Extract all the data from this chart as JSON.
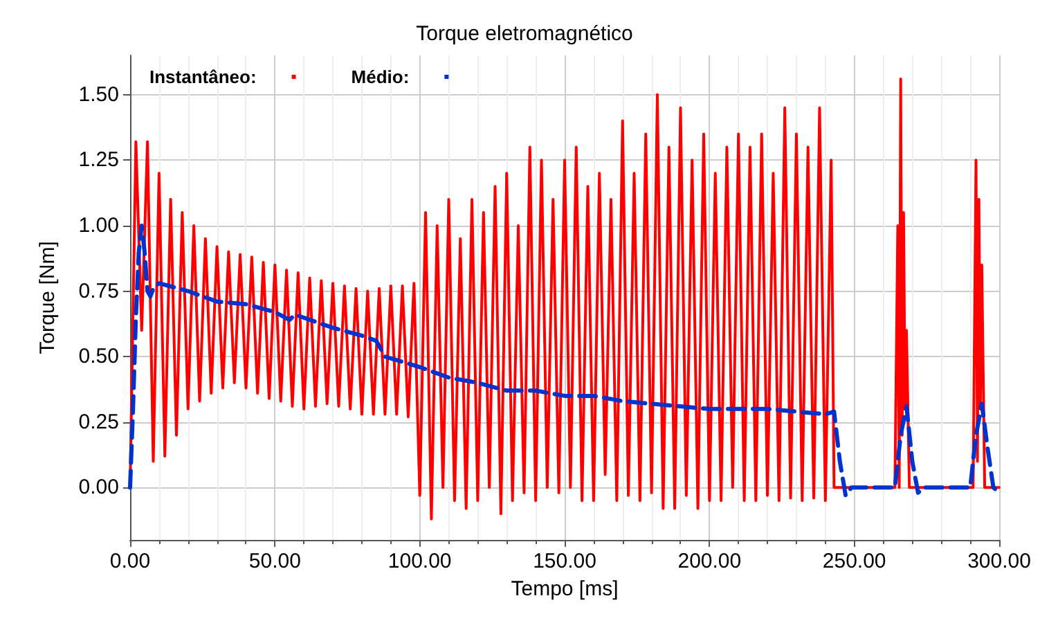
{
  "chart_data": {
    "type": "line",
    "title": "Torque eletromagnético",
    "xlabel": "Tempo [ms]",
    "ylabel": "Torque [Nm]",
    "xlim": [
      0,
      300
    ],
    "xticks": [
      {
        "value": 0,
        "label": "0.00"
      },
      {
        "value": 50,
        "label": "50.00"
      },
      {
        "value": 100,
        "label": "100.00"
      },
      {
        "value": 150,
        "label": "150.00"
      },
      {
        "value": 200,
        "label": "200.00"
      },
      {
        "value": 250,
        "label": "250.00"
      },
      {
        "value": 300,
        "label": "300.00"
      }
    ],
    "ylim": [
      -0.2,
      1.65
    ],
    "yticks": [
      {
        "value": 0,
        "label": "0.00"
      },
      {
        "value": 0.25,
        "label": "0.25"
      },
      {
        "value": 0.5,
        "label": "0.50"
      },
      {
        "value": 0.75,
        "label": "0.75"
      },
      {
        "value": 1,
        "label": "1.00"
      },
      {
        "value": 1.25,
        "label": "1.25"
      },
      {
        "value": 1.5,
        "label": "1.50"
      }
    ],
    "grid": true,
    "legend": "top left",
    "marker": "none",
    "series": [
      {
        "name": "Instantâneo:",
        "color": "#ff0000",
        "line_style": "solid",
        "x": [
          0,
          2,
          4,
          6,
          8,
          10,
          12,
          14,
          16,
          18,
          20,
          22,
          24,
          26,
          28,
          30,
          32,
          34,
          36,
          38,
          40,
          42,
          44,
          46,
          48,
          50,
          52,
          54,
          56,
          58,
          60,
          62,
          64,
          66,
          68,
          70,
          72,
          74,
          76,
          78,
          80,
          82,
          84,
          86,
          88,
          90,
          92,
          94,
          96,
          98,
          100,
          102,
          104,
          106,
          108,
          110,
          112,
          114,
          116,
          118,
          120,
          122,
          124,
          126,
          128,
          130,
          132,
          134,
          136,
          138,
          140,
          142,
          144,
          146,
          148,
          150,
          152,
          154,
          156,
          158,
          160,
          162,
          164,
          166,
          168,
          170,
          172,
          174,
          176,
          178,
          180,
          182,
          184,
          186,
          188,
          190,
          192,
          194,
          196,
          198,
          200,
          202,
          204,
          206,
          208,
          210,
          212,
          214,
          216,
          218,
          220,
          222,
          224,
          226,
          228,
          230,
          232,
          234,
          236,
          238,
          240,
          242,
          243,
          264,
          265,
          265.5,
          266,
          266.5,
          267,
          267.5,
          268,
          269,
          291,
          292,
          292.5,
          293,
          293.5,
          294,
          295,
          300
        ],
        "values": [
          0,
          1.32,
          0.6,
          1.32,
          0.1,
          1.2,
          0.12,
          1.1,
          0.2,
          1.05,
          0.3,
          1.0,
          0.33,
          0.95,
          0.36,
          0.92,
          0.38,
          0.9,
          0.4,
          0.89,
          0.38,
          0.88,
          0.36,
          0.86,
          0.34,
          0.85,
          0.33,
          0.83,
          0.31,
          0.82,
          0.3,
          0.8,
          0.31,
          0.79,
          0.32,
          0.78,
          0.31,
          0.77,
          0.3,
          0.76,
          0.28,
          0.75,
          0.28,
          0.76,
          0.28,
          0.77,
          0.28,
          0.77,
          0.27,
          0.78,
          -0.03,
          1.05,
          -0.12,
          1.0,
          0.0,
          1.1,
          -0.05,
          0.95,
          -0.08,
          1.1,
          -0.05,
          1.05,
          0.0,
          1.15,
          -0.1,
          1.2,
          -0.05,
          1.0,
          -0.02,
          1.3,
          -0.05,
          1.25,
          0.0,
          1.1,
          -0.02,
          1.25,
          0.0,
          1.3,
          -0.05,
          1.15,
          -0.05,
          1.2,
          0.05,
          1.1,
          -0.05,
          1.4,
          -0.03,
          1.2,
          -0.05,
          1.35,
          -0.02,
          1.5,
          -0.08,
          1.3,
          -0.08,
          1.45,
          -0.03,
          1.25,
          -0.08,
          1.35,
          -0.05,
          1.2,
          -0.05,
          1.3,
          0.0,
          1.35,
          -0.05,
          1.3,
          -0.05,
          1.35,
          -0.03,
          1.2,
          -0.05,
          1.45,
          -0.04,
          1.35,
          -0.05,
          1.3,
          -0.04,
          1.45,
          -0.05,
          1.25,
          0.0,
          0.0,
          1.0,
          0.0,
          1.56,
          0.2,
          1.05,
          0.3,
          0.6,
          0.0,
          0.0,
          1.25,
          0.1,
          1.1,
          0.3,
          0.85,
          0.0,
          0.0
        ]
      },
      {
        "name": "Médio:",
        "color": "#0033cc",
        "line_style": "dashed",
        "x": [
          0,
          1,
          2,
          3,
          4,
          5,
          6,
          7,
          8,
          10,
          20,
          30,
          40,
          50,
          55,
          57,
          70,
          80,
          85,
          88,
          100,
          110,
          120,
          130,
          140,
          150,
          160,
          170,
          180,
          190,
          200,
          210,
          220,
          230,
          240,
          243,
          245,
          247,
          249,
          264,
          266,
          268,
          270,
          272,
          274,
          290,
          292,
          294,
          296,
          298,
          300
        ],
        "values": [
          0,
          0.3,
          0.65,
          0.9,
          1.0,
          0.9,
          0.75,
          0.73,
          0.76,
          0.78,
          0.75,
          0.71,
          0.7,
          0.67,
          0.64,
          0.66,
          0.61,
          0.58,
          0.56,
          0.5,
          0.46,
          0.42,
          0.4,
          0.37,
          0.37,
          0.35,
          0.35,
          0.33,
          0.32,
          0.31,
          0.3,
          0.3,
          0.3,
          0.29,
          0.28,
          0.29,
          0.1,
          -0.03,
          0.0,
          0.0,
          0.2,
          0.31,
          0.1,
          -0.02,
          0.0,
          0.0,
          0.2,
          0.32,
          0.15,
          0.0,
          -0.02
        ]
      }
    ]
  }
}
